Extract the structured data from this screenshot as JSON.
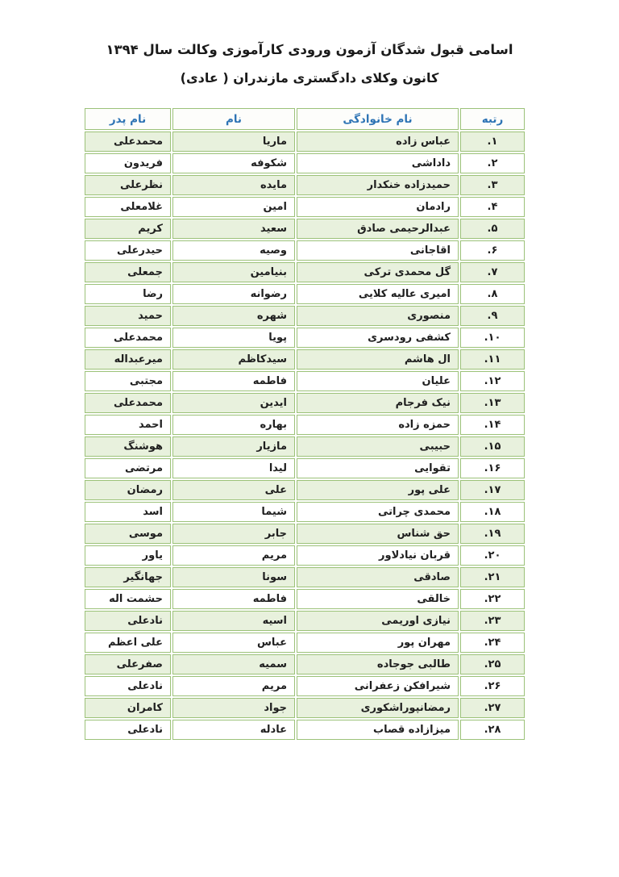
{
  "page": {
    "title": "اسامی قبول شدگان آزمون ورودی کارآموزی وکالت سال ۱۳۹۴",
    "subtitle": "کانون وکلای دادگستری مازندران ( عادی)"
  },
  "colors": {
    "table_border": "#9cc279",
    "row_alt_fill": "#e8f1dd",
    "header_text": "#2e74b5",
    "body_text": "#1f1f1f",
    "page_background": "#ffffff"
  },
  "table": {
    "headers": {
      "rank": "رتبه",
      "last_name": "نام خانوادگی",
      "first_name": "نام",
      "father_name": "نام پدر"
    },
    "rows": [
      {
        "rank": "۱.",
        "last_name": "عباس زاده",
        "first_name": "ماریا",
        "father_name": "محمدعلی"
      },
      {
        "rank": "۲.",
        "last_name": "داداشی",
        "first_name": "شکوفه",
        "father_name": "فریدون"
      },
      {
        "rank": "۳.",
        "last_name": "حمیدزاده خنکدار",
        "first_name": "مایده",
        "father_name": "نظرعلی"
      },
      {
        "rank": "۴.",
        "last_name": "رادمان",
        "first_name": "امین",
        "father_name": "غلامعلی"
      },
      {
        "rank": "۵.",
        "last_name": "عبدالرحیمی صادق",
        "first_name": "سعید",
        "father_name": "کریم"
      },
      {
        "rank": "۶.",
        "last_name": "اقاجانی",
        "first_name": "وصیه",
        "father_name": "حیدرعلی"
      },
      {
        "rank": "۷.",
        "last_name": "گل محمدی ترکی",
        "first_name": "بنیامین",
        "father_name": "جمعلی"
      },
      {
        "rank": "۸.",
        "last_name": "امیری عالیه کلایی",
        "first_name": "رضوانه",
        "father_name": "رضا"
      },
      {
        "rank": "۹.",
        "last_name": "منصوری",
        "first_name": "شهره",
        "father_name": "حمید"
      },
      {
        "rank": "۱۰.",
        "last_name": "کشفی رودسری",
        "first_name": "پویا",
        "father_name": "محمدعلی"
      },
      {
        "rank": "۱۱.",
        "last_name": "ال هاشم",
        "first_name": "سیدکاظم",
        "father_name": "میرعبداله"
      },
      {
        "rank": "۱۲.",
        "last_name": "علیان",
        "first_name": "فاطمه",
        "father_name": "مجتبی"
      },
      {
        "rank": "۱۳.",
        "last_name": "نیک فرجام",
        "first_name": "ایدین",
        "father_name": "محمدعلی"
      },
      {
        "rank": "۱۴.",
        "last_name": "حمزه زاده",
        "first_name": "بهاره",
        "father_name": "احمد"
      },
      {
        "rank": "۱۵.",
        "last_name": "حبیبی",
        "first_name": "مازیار",
        "father_name": "هوشنگ"
      },
      {
        "rank": "۱۶.",
        "last_name": "تقوایی",
        "first_name": "لیدا",
        "father_name": "مرتضی"
      },
      {
        "rank": "۱۷.",
        "last_name": "علی پور",
        "first_name": "علی",
        "father_name": "رمضان"
      },
      {
        "rank": "۱۸.",
        "last_name": "محمدی چراتی",
        "first_name": "شیما",
        "father_name": "اسد"
      },
      {
        "rank": "۱۹.",
        "last_name": "حق شناس",
        "first_name": "جابر",
        "father_name": "موسی"
      },
      {
        "rank": "۲۰.",
        "last_name": "قربان نیادلاور",
        "first_name": "مریم",
        "father_name": "یاور"
      },
      {
        "rank": "۲۱.",
        "last_name": "صادقی",
        "first_name": "سونا",
        "father_name": "جهانگیر"
      },
      {
        "rank": "۲۲.",
        "last_name": "خالقی",
        "first_name": "فاطمه",
        "father_name": "حشمت اله"
      },
      {
        "rank": "۲۳.",
        "last_name": "نیازی اوریمی",
        "first_name": "اسیه",
        "father_name": "نادعلی"
      },
      {
        "rank": "۲۴.",
        "last_name": "مهران پور",
        "first_name": "عباس",
        "father_name": "علی اعظم"
      },
      {
        "rank": "۲۵.",
        "last_name": "طالبی جوجاده",
        "first_name": "سمیه",
        "father_name": "صفرعلی"
      },
      {
        "rank": "۲۶.",
        "last_name": "شیرافکن زعفرانی",
        "first_name": "مریم",
        "father_name": "نادعلی"
      },
      {
        "rank": "۲۷.",
        "last_name": "رمضانپوراشکوری",
        "first_name": "جواد",
        "father_name": "کامران"
      },
      {
        "rank": "۲۸.",
        "last_name": "میزازاده قصاب",
        "first_name": "عادله",
        "father_name": "نادعلی"
      }
    ]
  }
}
